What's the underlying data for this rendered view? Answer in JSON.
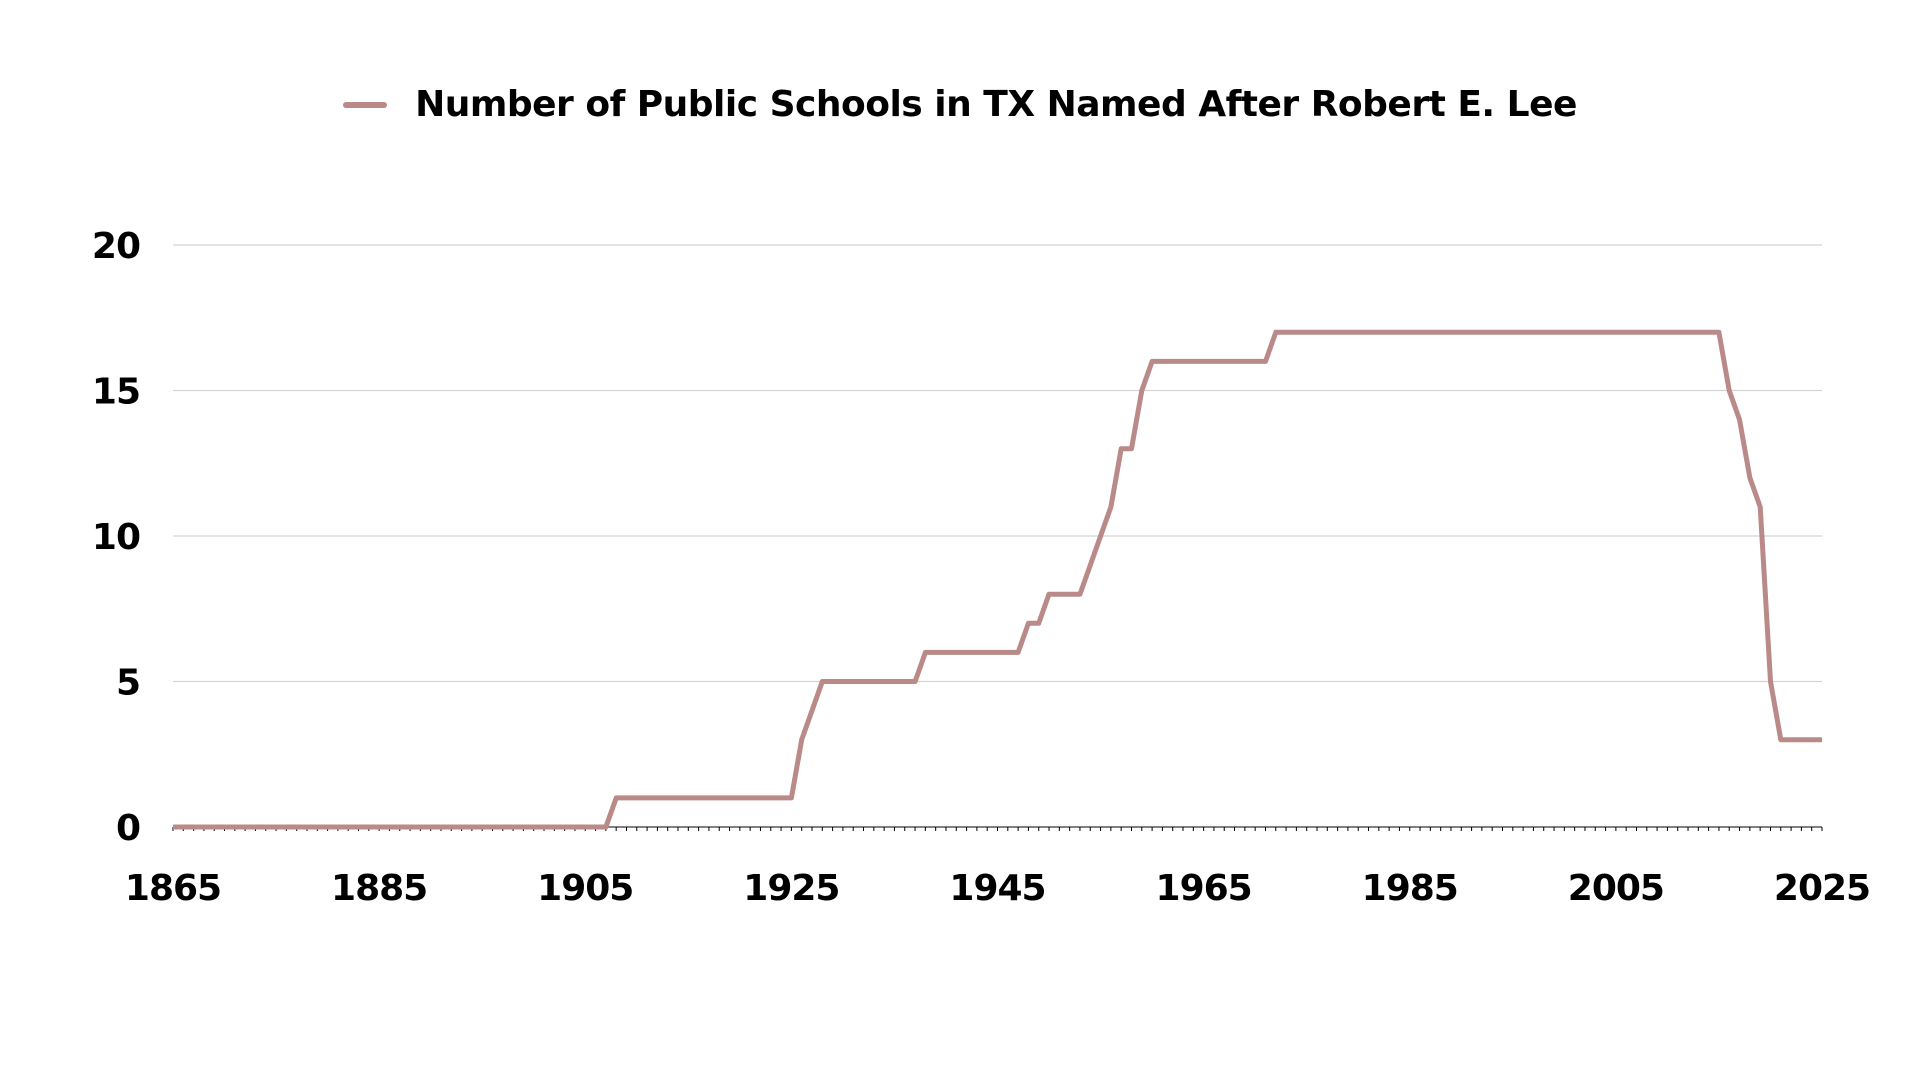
{
  "chart_data": {
    "type": "line",
    "title": "",
    "xlabel": "",
    "ylabel": "",
    "xlim": [
      1865,
      2025
    ],
    "ylim": [
      0,
      20
    ],
    "x_ticks": [
      "1865",
      "1885",
      "1905",
      "1925",
      "1945",
      "1965",
      "1985",
      "2005",
      "2025"
    ],
    "y_ticks": [
      "0",
      "5",
      "10",
      "15",
      "20"
    ],
    "grid": "horizontal",
    "legend_position": "top-center",
    "colors": {
      "series": "#b98a88",
      "grid": "#d4d4d4",
      "axis": "#000000"
    },
    "series": [
      {
        "name": "Number of Public Schools in TX Named After Robert E. Lee",
        "x": [
          1865,
          1907,
          1908,
          1925,
          1926,
          1928,
          1937,
          1938,
          1947,
          1948,
          1949,
          1950,
          1953,
          1956,
          1957,
          1958,
          1959,
          1960,
          1971,
          1972,
          2015,
          2016,
          2017,
          2018,
          2019,
          2020,
          2021,
          2025
        ],
        "values": [
          0,
          0,
          1,
          1,
          3,
          5,
          5,
          6,
          6,
          7,
          7,
          8,
          8,
          11,
          13,
          13,
          15,
          16,
          16,
          17,
          17,
          15,
          14,
          12,
          11,
          5,
          3,
          3
        ]
      }
    ]
  }
}
